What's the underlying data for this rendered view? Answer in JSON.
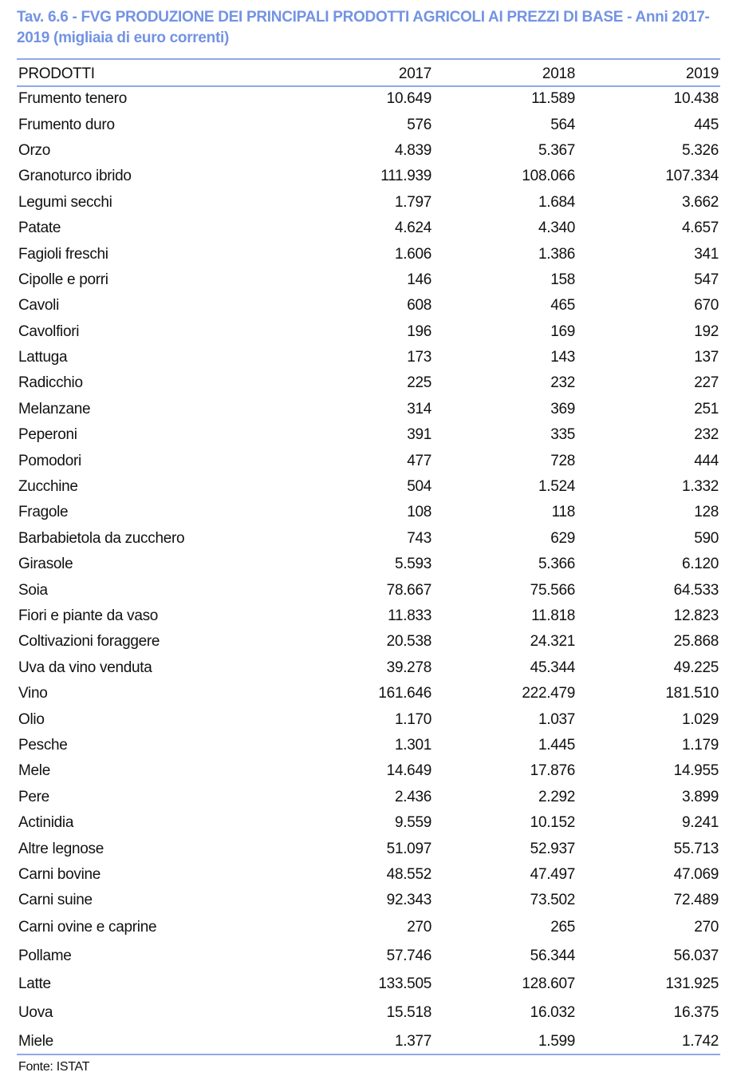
{
  "title": "Tav. 6.6 - FVG PRODUZIONE DEI PRINCIPALI PRODOTTI AGRICOLI AI PREZZI DI BASE - Anni 2017-2019 (migliaia di euro correnti)",
  "accent_color": "#7393e3",
  "table": {
    "headers": [
      "PRODOTTI",
      "2017",
      "2018",
      "2019"
    ],
    "rows": [
      [
        "Frumento tenero",
        "10.649",
        "11.589",
        "10.438"
      ],
      [
        "Frumento duro",
        "576",
        "564",
        "445"
      ],
      [
        "Orzo",
        "4.839",
        "5.367",
        "5.326"
      ],
      [
        "Granoturco ibrido",
        "111.939",
        "108.066",
        "107.334"
      ],
      [
        "Legumi secchi",
        "1.797",
        "1.684",
        "3.662"
      ],
      [
        "Patate",
        "4.624",
        "4.340",
        "4.657"
      ],
      [
        "Fagioli freschi",
        "1.606",
        "1.386",
        "341"
      ],
      [
        "Cipolle e porri",
        "146",
        "158",
        "547"
      ],
      [
        "Cavoli",
        "608",
        "465",
        "670"
      ],
      [
        "Cavolfiori",
        "196",
        "169",
        "192"
      ],
      [
        "Lattuga",
        "173",
        "143",
        "137"
      ],
      [
        "Radicchio",
        "225",
        "232",
        "227"
      ],
      [
        "Melanzane",
        "314",
        "369",
        "251"
      ],
      [
        "Peperoni",
        "391",
        "335",
        "232"
      ],
      [
        "Pomodori",
        "477",
        "728",
        "444"
      ],
      [
        "Zucchine",
        "504",
        "1.524",
        "1.332"
      ],
      [
        "Fragole",
        "108",
        "118",
        "128"
      ],
      [
        "Barbabietola da zucchero",
        "743",
        "629",
        "590"
      ],
      [
        "Girasole",
        "5.593",
        "5.366",
        "6.120"
      ],
      [
        "Soia",
        "78.667",
        "75.566",
        "64.533"
      ],
      [
        "Fiori e piante da vaso",
        "11.833",
        "11.818",
        "12.823"
      ],
      [
        "Coltivazioni foraggere",
        "20.538",
        "24.321",
        "25.868"
      ],
      [
        "Uva da vino venduta",
        "39.278",
        "45.344",
        "49.225"
      ],
      [
        "Vino",
        "161.646",
        "222.479",
        "181.510"
      ],
      [
        "Olio",
        "1.170",
        "1.037",
        "1.029"
      ],
      [
        "Pesche",
        "1.301",
        "1.445",
        "1.179"
      ],
      [
        "Mele",
        "14.649",
        "17.876",
        "14.955"
      ],
      [
        "Pere",
        "2.436",
        "2.292",
        "3.899"
      ],
      [
        "Actinidia",
        "9.559",
        "10.152",
        "9.241"
      ],
      [
        "Altre legnose",
        "51.097",
        "52.937",
        "55.713"
      ],
      [
        "Carni bovine",
        "48.552",
        "47.497",
        "47.069"
      ],
      [
        "Carni suine",
        "92.343",
        "73.502",
        "72.489"
      ],
      [
        "Carni ovine e caprine",
        "270",
        "265",
        "270"
      ],
      [
        "Pollame",
        "57.746",
        "56.344",
        "56.037"
      ],
      [
        "Latte",
        "133.505",
        "128.607",
        "131.925"
      ],
      [
        "Uova",
        "15.518",
        "16.032",
        "16.375"
      ],
      [
        "Miele",
        "1.377",
        "1.599",
        "1.742"
      ]
    ]
  },
  "source": "Fonte: ISTAT"
}
